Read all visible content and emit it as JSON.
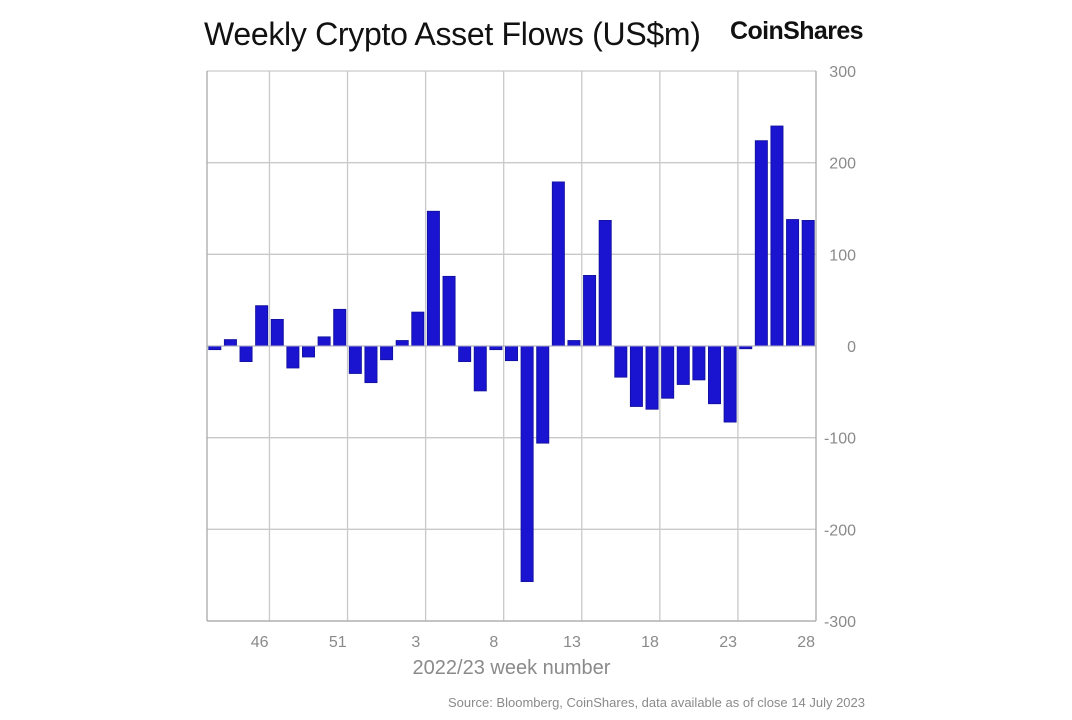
{
  "header": {
    "title": "Weekly Crypto Asset Flows (US$m)",
    "brand": "CoinShares"
  },
  "footer": {
    "source": "Source: Bloomberg, CoinShares, data available as of close 14 July 2023"
  },
  "colors": {
    "bar": "#1a13cf",
    "bar_edge": "#10109a",
    "grid": "#c9c9c9",
    "axis_text": "#8a8a8a"
  },
  "chart_data": {
    "type": "bar",
    "title": "Weekly Crypto Asset Flows (US$m)",
    "xlabel": "2022/23 week number",
    "ylabel": "",
    "ylim": [
      -300,
      300
    ],
    "yticks": [
      300,
      200,
      100,
      0,
      -100,
      -200,
      -300
    ],
    "y_axis_side": "right",
    "grid": true,
    "categories": [
      "43",
      "44",
      "45",
      "46",
      "47",
      "48",
      "49",
      "50",
      "51",
      "52",
      "53",
      "1",
      "2",
      "3",
      "4",
      "5",
      "6",
      "7",
      "8",
      "9",
      "10",
      "11",
      "12",
      "13",
      "14",
      "15",
      "16",
      "17",
      "18",
      "19",
      "20",
      "21",
      "22",
      "23",
      "24",
      "25",
      "26",
      "27",
      "28"
    ],
    "xtick_labels": [
      "46",
      "51",
      "3",
      "8",
      "13",
      "18",
      "23",
      "28"
    ],
    "values": [
      -4,
      7,
      -17,
      44,
      29,
      -24,
      -12,
      10,
      40,
      -30,
      -40,
      -15,
      6,
      37,
      147,
      76,
      -17,
      -49,
      -4,
      -16,
      -257,
      -106,
      179,
      6,
      77,
      137,
      -34,
      -66,
      -69,
      -57,
      -42,
      -37,
      -63,
      -83,
      -3,
      224,
      240,
      138,
      137
    ]
  }
}
